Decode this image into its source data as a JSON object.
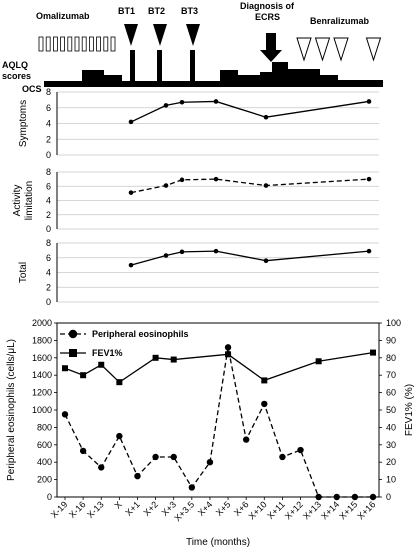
{
  "treatment_panel": {
    "omalizumab_label": "Omalizumab",
    "bt_labels": [
      "BT1",
      "BT2",
      "BT3"
    ],
    "ecrs_label_line1": "Diagnosis of",
    "ecrs_label_line2": "ECRS",
    "benralizumab_label": "Benralizumab",
    "aqlq_label": "AQLQ",
    "scores_label": "scores",
    "ocs_label": "OCS",
    "omalizumab_dose_count": 11,
    "benralizumab_dose_count": 4
  },
  "chart_data": [
    {
      "type": "line",
      "ylabel": "Symptoms",
      "ylim": [
        0,
        8
      ],
      "yticks": [
        0,
        2,
        4,
        6,
        8
      ],
      "line_style": "solid",
      "x": [
        "X+1",
        "X+2",
        "X+3",
        "X+4",
        "X+10",
        "X+16"
      ],
      "values": [
        4.2,
        6.3,
        6.7,
        6.8,
        4.8,
        6.8
      ]
    },
    {
      "type": "line",
      "ylabel": "Activity limitation",
      "ylim": [
        0,
        8
      ],
      "yticks": [
        0,
        2,
        4,
        6,
        8
      ],
      "line_style": "dashed",
      "x": [
        "X+1",
        "X+2",
        "X+3",
        "X+4",
        "X+10",
        "X+16"
      ],
      "values": [
        5.1,
        6.1,
        6.9,
        7.0,
        6.1,
        7.0
      ]
    },
    {
      "type": "line",
      "ylabel": "Total",
      "ylim": [
        0,
        8
      ],
      "yticks": [
        0,
        2,
        4,
        6,
        8
      ],
      "line_style": "solid",
      "x": [
        "X+1",
        "X+2",
        "X+3",
        "X+4",
        "X+10",
        "X+16"
      ],
      "values": [
        5.0,
        6.3,
        6.8,
        6.9,
        5.6,
        6.9
      ]
    },
    {
      "type": "line",
      "xlabel": "Time (months)",
      "ylabel": "Peripheral eosinophils (cells/μL)",
      "y2label": "FEV1% (%)",
      "ylim": [
        0,
        2000
      ],
      "yticks": [
        0,
        200,
        400,
        600,
        800,
        1000,
        1200,
        1400,
        1600,
        1800,
        2000
      ],
      "y2lim": [
        0,
        100
      ],
      "y2ticks": [
        0,
        10,
        20,
        30,
        40,
        50,
        60,
        70,
        80,
        90,
        100
      ],
      "categories": [
        "X-19",
        "X-16",
        "X-13",
        "X",
        "X+1",
        "X+2",
        "X+3",
        "X+3.5",
        "X+4",
        "X+5",
        "X+6",
        "X+10",
        "X+11",
        "X+12",
        "X+13",
        "X+14",
        "X+15",
        "X+16"
      ],
      "legend_position": "top-left",
      "series": [
        {
          "name": "Peripheral eosinophils",
          "axis": "left",
          "marker": "circle",
          "line_style": "dashed",
          "x": [
            "X-19",
            "X-16",
            "X-13",
            "X",
            "X+1",
            "X+2",
            "X+3",
            "X+3.5",
            "X+4",
            "X+5",
            "X+6",
            "X+10",
            "X+11",
            "X+12",
            "X+13",
            "X+14",
            "X+15",
            "X+16"
          ],
          "values": [
            950,
            530,
            340,
            700,
            240,
            460,
            460,
            110,
            400,
            1720,
            660,
            1070,
            460,
            540,
            0,
            0,
            0,
            0
          ]
        },
        {
          "name": "FEV1%",
          "axis": "right",
          "marker": "square",
          "line_style": "solid",
          "x": [
            "X-19",
            "X-16",
            "X-13",
            "X",
            "X+2",
            "X+3",
            "X+5",
            "X+10",
            "X+13",
            "X+16"
          ],
          "values": [
            74,
            70,
            76,
            66,
            80,
            79,
            82,
            67,
            78,
            83
          ]
        }
      ]
    }
  ]
}
